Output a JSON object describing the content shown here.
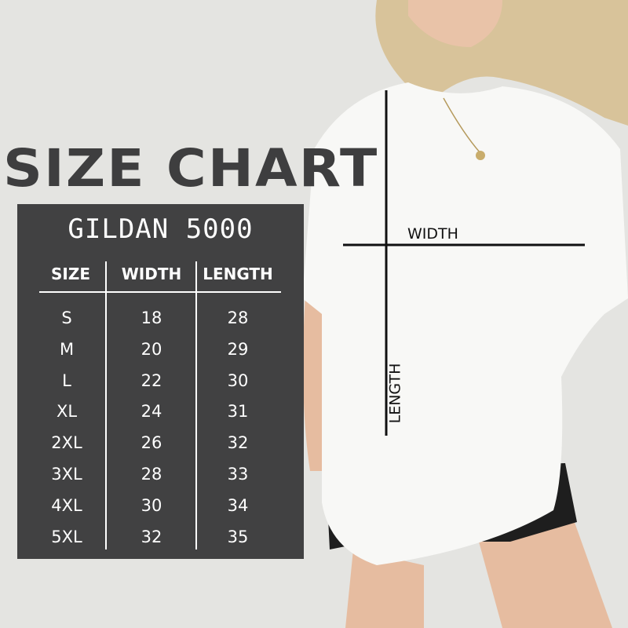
{
  "title": "SIZE CHART",
  "brand": "GILDAN 5000",
  "table": {
    "headers": [
      "SIZE",
      "WIDTH",
      "LENGTH"
    ],
    "rows": [
      [
        "S",
        "18",
        "28"
      ],
      [
        "M",
        "20",
        "29"
      ],
      [
        "L",
        "22",
        "30"
      ],
      [
        "XL",
        "24",
        "31"
      ],
      [
        "2XL",
        "26",
        "32"
      ],
      [
        "3XL",
        "28",
        "33"
      ],
      [
        "4XL",
        "30",
        "34"
      ],
      [
        "5XL",
        "32",
        "35"
      ]
    ]
  },
  "measurements": {
    "width_label": "WIDTH",
    "length_label": "LENGTH"
  },
  "colors": {
    "panel": "#414142",
    "background": "#e4e4e1",
    "title": "#3e3e3f"
  }
}
